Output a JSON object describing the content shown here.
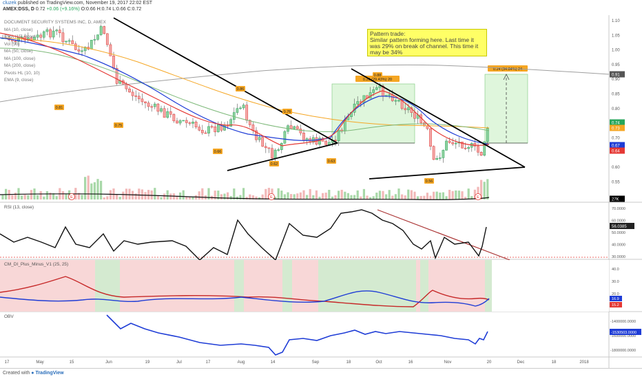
{
  "header": {
    "user": "cluzek",
    "published": "published on TradingView.com, November 19, 2017 22:02 EST",
    "symbol": "AMEX:DSS, D",
    "price": "0.72",
    "change": "+0.06 (+9.16%)",
    "open": "O:0.66",
    "high": "H:0.74",
    "low": "L:0.66",
    "close": "C:0.72"
  },
  "indicators": [
    "DOCUMENT SECURITY SYSTEMS INC, D, AMEX",
    "MA (10, close)",
    "EMA (15, close)",
    "Vol (50)",
    "MA (50, close)",
    "MA (100, close)",
    "MA (200, close)",
    "Pivots HL (10, 10)",
    "EMA (9, close)"
  ],
  "note": {
    "title": "Pattern trade:",
    "body": "Similar pattern forming here. Last time it was 29% on break of channel. This time it may be 34%"
  },
  "measure_labels": [
    "0.20 (29.43%) 20",
    "0.24 (34.84%) 24"
  ],
  "panels": {
    "rsi_title": "RSI (13, close)",
    "di_title": "CM_DI_Plus_Minus_V1 (25, 25)",
    "obv_title": "OBV"
  },
  "footer": {
    "made": "Created with",
    "brand": "TradingView"
  },
  "colors": {
    "up": "#26a65b",
    "down": "#e53935",
    "accent": "#2a6ebb",
    "note_bg": "#ffff66"
  },
  "chart_data": [
    {
      "type": "candlestick",
      "title": "AMEX:DSS, D",
      "y_ticks": [
        "1.10",
        "1.05",
        "1.00",
        "0.95",
        "0.90",
        "0.85",
        "0.80",
        "0.75",
        "0.70",
        "0.65",
        "0.60",
        "0.55"
      ],
      "ylim": [
        0.5,
        1.12
      ],
      "x_ticks": [
        "17",
        "May",
        "15",
        "Jun",
        "19",
        "Jul",
        "17",
        "Aug",
        "14",
        "Sep",
        "18",
        "Oct",
        "16",
        "Nov",
        "20",
        "Dec",
        "18",
        "2018"
      ],
      "last_values": [
        {
          "label": "0.91",
          "color": "#555555"
        },
        {
          "label": "0.74",
          "color": "#26a65b"
        },
        {
          "label": "0.73",
          "color": "#f5a623"
        },
        {
          "label": "0.67",
          "color": "#1e3cd6"
        },
        {
          "label": "0.64",
          "color": "#e53935"
        },
        {
          "label": "27K",
          "color": "#000000"
        }
      ],
      "pivot_labels": [
        "0.81",
        "0.75",
        "0.86",
        "0.66",
        "0.76",
        "0.62",
        "0.63",
        "0.88",
        "0.56"
      ],
      "earnings_markers": 4
    },
    {
      "type": "line",
      "title": "RSI (13, close)",
      "y_ticks": [
        "70.0000",
        "60.0000",
        "50.0000",
        "40.0000",
        "30.0000"
      ],
      "last_value": "56.0385",
      "ylim": [
        28,
        72
      ]
    },
    {
      "type": "line",
      "title": "CM_DI_Plus_Minus_V1 (25, 25)",
      "y_ticks": [
        "40.0",
        "30.0",
        "20.0",
        "10.0"
      ],
      "last_values": [
        "16.9",
        "15.2"
      ],
      "series": [
        {
          "name": "DI+",
          "color": "#1e3cd6"
        },
        {
          "name": "DI-",
          "color": "#e53935"
        }
      ]
    },
    {
      "type": "line",
      "title": "OBV",
      "y_ticks": [
        "-1400000.0000",
        "-1600000.0000",
        "-1800000.0000"
      ],
      "last_value": "-1530503.0000"
    }
  ]
}
